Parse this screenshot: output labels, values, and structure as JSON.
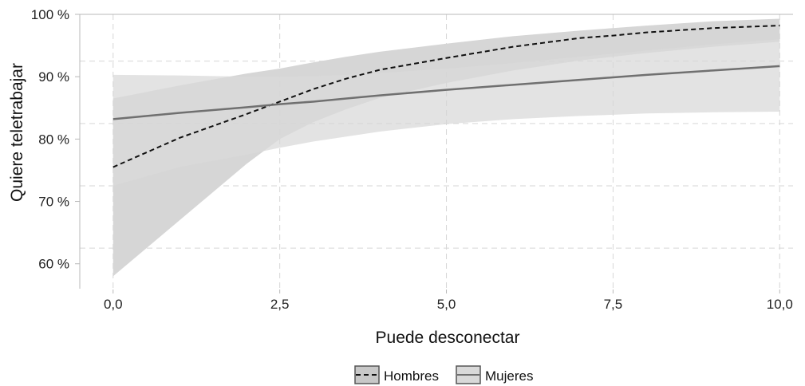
{
  "chart_data": {
    "type": "line",
    "title": "",
    "xlabel": "Puede desconectar",
    "ylabel": "Quiere teletrabajar",
    "xlim": [
      -0.5,
      10.2
    ],
    "ylim": [
      56,
      100
    ],
    "x_ticks": [
      {
        "value": 0,
        "label": "0,0"
      },
      {
        "value": 2.5,
        "label": "2,5"
      },
      {
        "value": 5,
        "label": "5,0"
      },
      {
        "value": 7.5,
        "label": "7,5"
      },
      {
        "value": 10,
        "label": "10,0"
      }
    ],
    "y_ticks": [
      {
        "value": 60,
        "label": "60 %"
      },
      {
        "value": 70,
        "label": "70 %"
      },
      {
        "value": 80,
        "label": "80 %"
      },
      {
        "value": 90,
        "label": "90 %"
      },
      {
        "value": 100,
        "label": "100 %"
      }
    ],
    "y_gridlines": [
      62.5,
      72.5,
      82.5,
      92.5
    ],
    "grid": true,
    "legend_position": "bottom",
    "x": [
      0,
      1,
      2,
      2.5,
      3,
      3.5,
      4,
      5,
      6,
      7,
      7.5,
      8,
      9,
      10
    ],
    "series": [
      {
        "name": "Hombres",
        "line_style": "dashed",
        "color": "#111111",
        "band_color": "#c8c8c8",
        "values": [
          75.5,
          80.2,
          84.0,
          86.0,
          88.0,
          89.7,
          91.1,
          93.0,
          94.8,
          96.2,
          96.6,
          97.1,
          97.8,
          98.2
        ],
        "lower": [
          58.0,
          67.0,
          76.0,
          80.0,
          82.7,
          84.8,
          86.6,
          89.0,
          91.0,
          92.6,
          93.2,
          93.8,
          94.8,
          95.6
        ],
        "upper": [
          86.5,
          88.6,
          90.5,
          91.3,
          92.3,
          93.2,
          94.0,
          95.3,
          96.5,
          97.4,
          97.8,
          98.2,
          98.9,
          99.3
        ]
      },
      {
        "name": "Mujeres",
        "line_style": "solid",
        "color": "#707070",
        "band_color": "#d9d9d9",
        "values": [
          83.2,
          84.2,
          85.1,
          85.6,
          86.0,
          86.5,
          87.0,
          87.9,
          88.7,
          89.5,
          89.9,
          90.3,
          91.0,
          91.7
        ],
        "lower": [
          72.5,
          75.5,
          77.5,
          78.6,
          79.6,
          80.4,
          81.2,
          82.4,
          83.2,
          83.7,
          83.9,
          84.1,
          84.3,
          84.4
        ],
        "upper": [
          90.3,
          90.2,
          90.0,
          90.0,
          90.1,
          90.3,
          90.6,
          91.3,
          92.2,
          93.2,
          93.7,
          94.2,
          95.2,
          96.0
        ]
      }
    ]
  },
  "colors": {
    "grid": "#d6d6d6",
    "axis": "#b8b8b8",
    "text": "#222222",
    "background": "#ffffff"
  }
}
